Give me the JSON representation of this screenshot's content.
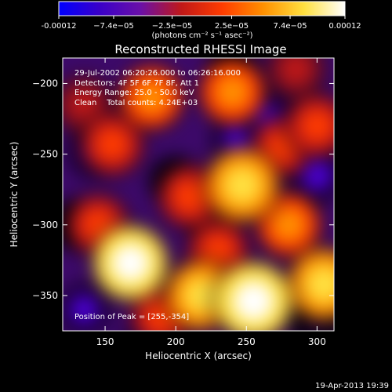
{
  "chart_data": {
    "type": "heatmap",
    "title": "Reconstructed RHESSI Image",
    "xlabel": "Heliocentric X (arcsec)",
    "ylabel": "Heliocentric Y (arcsec)",
    "xlim": [
      120,
      312
    ],
    "ylim": [
      -375,
      -182
    ],
    "x_ticks": [
      150,
      200,
      250,
      300
    ],
    "y_ticks": [
      -200,
      -250,
      -300,
      -350
    ],
    "colorbar": {
      "range": [
        -0.00012,
        0.00012
      ],
      "ticks": [
        -0.00012,
        -7.4e-05,
        -2.5e-05,
        2.5e-05,
        7.4e-05,
        0.00012
      ],
      "tick_labels": [
        "-0.00012",
        "−7.4e−05",
        "−2.5e−05",
        "2.5e−05",
        "7.4e−05",
        "0.00012"
      ],
      "unit_label": "(photons cm⁻² s⁻¹ asec⁻²)",
      "colors": [
        "#0000ff",
        "#3a00c8",
        "#6a10a8",
        "#c01818",
        "#ff3c00",
        "#ff9000",
        "#ffe040",
        "#ffffff"
      ]
    },
    "annotations": [
      "29-Jul-2002 06:20:26.000 to 06:26:16.000",
      "Detectors: 4F 5F 6F 7F 8F, Att 1",
      "Energy Range: 25.0 - 50.0 keV",
      "Clean    Total counts: 4.24E+03"
    ],
    "peak_label": "Position of Peak = [255,-354]",
    "peak": [
      255,
      -354
    ],
    "blobs": [
      {
        "x": 255,
        "y": -354,
        "v": 1.0
      },
      {
        "x": 168,
        "y": -327,
        "v": 0.9
      },
      {
        "x": 247,
        "y": -272,
        "v": 0.85
      },
      {
        "x": 305,
        "y": -342,
        "v": 0.8
      },
      {
        "x": 218,
        "y": -350,
        "v": 0.75
      },
      {
        "x": 240,
        "y": -206,
        "v": 0.6
      },
      {
        "x": 183,
        "y": -210,
        "v": 0.55
      },
      {
        "x": 300,
        "y": -230,
        "v": 0.5
      },
      {
        "x": 155,
        "y": -243,
        "v": 0.5
      },
      {
        "x": 280,
        "y": -300,
        "v": 0.55
      },
      {
        "x": 210,
        "y": -280,
        "v": 0.5
      },
      {
        "x": 145,
        "y": -300,
        "v": 0.45
      },
      {
        "x": 190,
        "y": -365,
        "v": 0.45
      },
      {
        "x": 275,
        "y": -245,
        "v": 0.4
      },
      {
        "x": 135,
        "y": -215,
        "v": 0.35
      },
      {
        "x": 285,
        "y": -190,
        "v": 0.35
      },
      {
        "x": 230,
        "y": -318,
        "v": 0.45
      },
      {
        "x": 142,
        "y": -248,
        "v": -0.45
      },
      {
        "x": 245,
        "y": -240,
        "v": -0.5
      },
      {
        "x": 300,
        "y": -265,
        "v": -0.5
      },
      {
        "x": 180,
        "y": -388,
        "v": -0.45
      },
      {
        "x": 265,
        "y": -225,
        "v": -0.4
      },
      {
        "x": 200,
        "y": -270,
        "v": -0.35
      },
      {
        "x": 130,
        "y": -300,
        "v": -0.35
      },
      {
        "x": 225,
        "y": -300,
        "v": -0.3
      },
      {
        "x": 300,
        "y": -372,
        "v": -0.3
      },
      {
        "x": 135,
        "y": -360,
        "v": -0.4
      },
      {
        "x": 240,
        "y": -190,
        "v": -0.3
      }
    ]
  },
  "footer": {
    "timestamp": "19-Apr-2013 19:39"
  }
}
